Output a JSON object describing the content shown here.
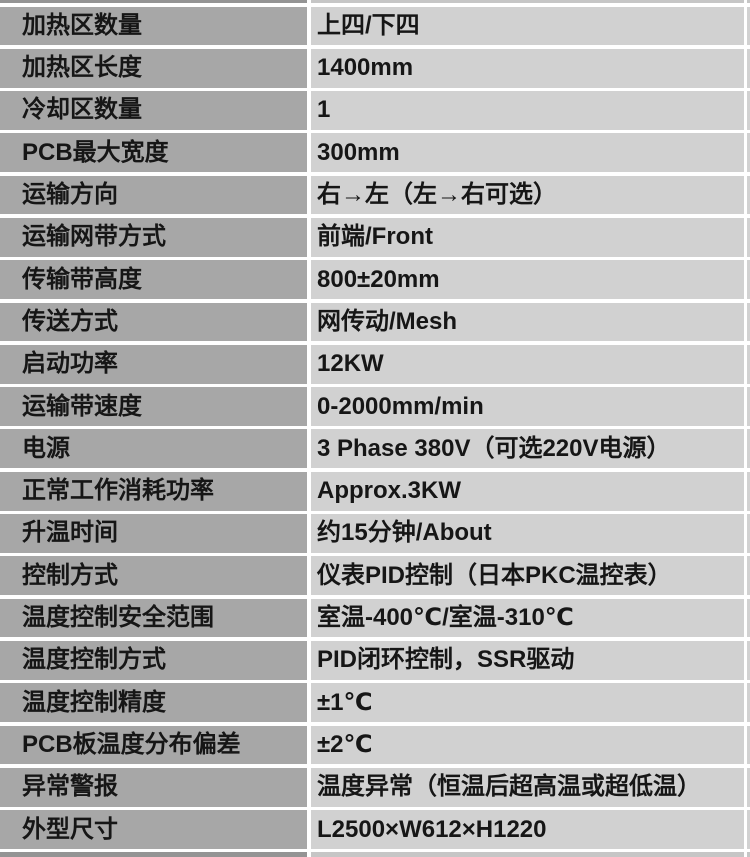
{
  "colors": {
    "label_bg": "#a7a7a7",
    "value_bg": "#d1d1d1",
    "gap": "#ffffff",
    "text": "#161616",
    "strip_label_bg": "#949494",
    "strip_value_bg": "#c6c6c6"
  },
  "table": {
    "rows": [
      {
        "label": "加热区数量",
        "value": "上四/下四"
      },
      {
        "label": "加热区长度",
        "value": "1400mm"
      },
      {
        "label": "冷却区数量",
        "value": "1"
      },
      {
        "label": "PCB最大宽度",
        "value": "300mm"
      },
      {
        "label": "运输方向",
        "value": "右→左（左→右可选）"
      },
      {
        "label": "运输网带方式",
        "value": "前端/Front"
      },
      {
        "label": "传输带高度",
        "value": "800±20mm"
      },
      {
        "label": "传送方式",
        "value": "网传动/Mesh"
      },
      {
        "label": "启动功率",
        "value": "12KW"
      },
      {
        "label": "运输带速度",
        "value": "0-2000mm/min"
      },
      {
        "label": "电源",
        "value": "3 Phase 380V（可选220V电源）"
      },
      {
        "label": "正常工作消耗功率",
        "value": "Approx.3KW"
      },
      {
        "label": "升温时间",
        "value": "约15分钟/About"
      },
      {
        "label": "控制方式",
        "value": "仪表PID控制（日本PKC温控表）"
      },
      {
        "label": "温度控制安全范围",
        "value": "室温-400℃/室温-310℃"
      },
      {
        "label": "温度控制方式",
        "value": "PID闭环控制，SSR驱动"
      },
      {
        "label": "温度控制精度",
        "value": "±1℃"
      },
      {
        "label": "PCB板温度分布偏差",
        "value": "±2℃"
      },
      {
        "label": "异常警报",
        "value": "温度异常（恒温后超高温或超低温）"
      },
      {
        "label": "外型尺寸",
        "value": "L2500×W612×H1220"
      }
    ]
  }
}
